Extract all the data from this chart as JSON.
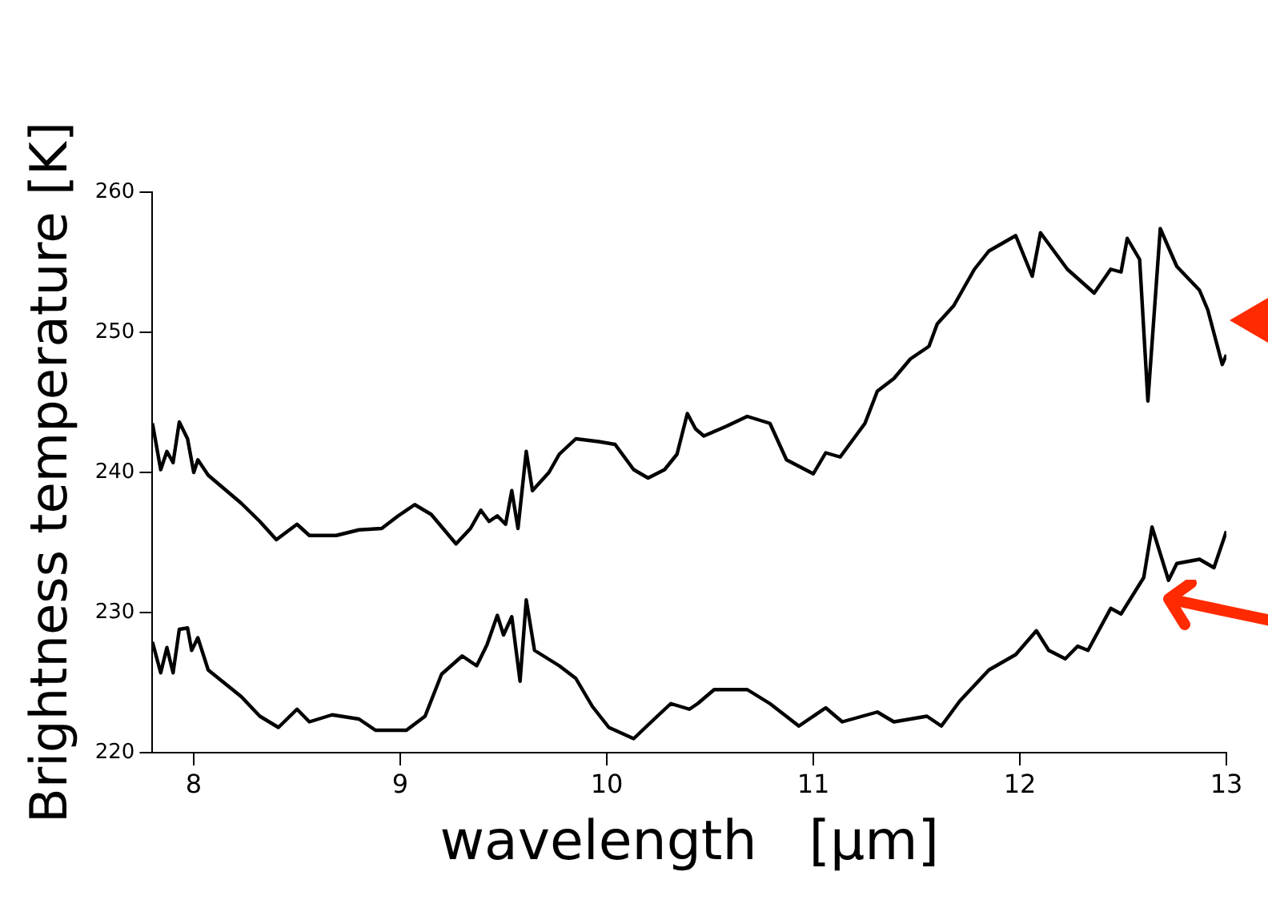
{
  "chart_data": {
    "type": "line",
    "xlabel": "wavelength   [μm]",
    "ylabel": "Brightness temperature [K]",
    "xlim": [
      7.8,
      13.0
    ],
    "xticks": [
      8,
      9,
      10,
      11,
      12,
      13
    ],
    "ylim": [
      220,
      260
    ],
    "yticks": [
      220,
      230,
      240,
      250,
      260
    ],
    "grid": false,
    "legend": false,
    "marker": "none",
    "line_style": "solid",
    "series": [
      {
        "color": "#000000",
        "x": [
          7.8,
          7.84,
          7.87,
          7.9,
          7.93,
          7.97,
          8.0,
          8.02,
          8.07,
          8.23,
          8.32,
          8.4,
          8.5,
          8.56,
          8.69,
          8.8,
          8.91,
          8.99,
          9.07,
          9.15,
          9.27,
          9.34,
          9.39,
          9.43,
          9.47,
          9.51,
          9.54,
          9.57,
          9.61,
          9.64,
          9.72,
          9.77,
          9.85,
          9.96,
          10.04,
          10.13,
          10.2,
          10.28,
          10.34,
          10.39,
          10.43,
          10.47,
          10.58,
          10.68,
          10.79,
          10.87,
          11.0,
          11.06,
          11.13,
          11.25,
          11.31,
          11.39,
          11.47,
          11.56,
          11.6,
          11.68,
          11.78,
          11.85,
          11.98,
          12.06,
          12.1,
          12.23,
          12.36,
          12.44,
          12.49,
          12.52,
          12.58,
          12.62,
          12.68,
          12.76,
          12.87,
          12.91,
          12.98,
          13.0
        ],
        "values": [
          243.5,
          240.2,
          241.5,
          240.7,
          243.6,
          242.4,
          240.0,
          240.9,
          239.8,
          237.8,
          236.5,
          235.2,
          236.3,
          235.5,
          235.5,
          235.9,
          236.0,
          236.9,
          237.7,
          237.0,
          234.9,
          236.0,
          237.3,
          236.5,
          236.9,
          236.3,
          238.7,
          236.0,
          241.5,
          238.7,
          240.0,
          241.3,
          242.4,
          242.2,
          242.0,
          240.2,
          239.6,
          240.2,
          241.3,
          244.2,
          243.1,
          242.6,
          243.3,
          244.0,
          243.5,
          240.9,
          239.9,
          241.4,
          241.1,
          243.5,
          245.8,
          246.7,
          248.1,
          249.0,
          250.6,
          251.9,
          254.5,
          255.8,
          256.9,
          254.0,
          257.1,
          254.5,
          252.8,
          254.5,
          254.3,
          256.7,
          255.2,
          245.1,
          257.4,
          254.7,
          253.0,
          251.6,
          247.7,
          248.4
        ]
      },
      {
        "color": "#000000",
        "x": [
          7.8,
          7.84,
          7.87,
          7.9,
          7.93,
          7.97,
          7.99,
          8.02,
          8.07,
          8.23,
          8.32,
          8.41,
          8.5,
          8.56,
          8.67,
          8.8,
          8.88,
          9.03,
          9.12,
          9.2,
          9.3,
          9.37,
          9.42,
          9.47,
          9.5,
          9.54,
          9.58,
          9.61,
          9.65,
          9.77,
          9.85,
          9.93,
          10.01,
          10.13,
          10.23,
          10.31,
          10.4,
          10.44,
          10.52,
          10.63,
          10.68,
          10.79,
          10.93,
          11.06,
          11.14,
          11.31,
          11.39,
          11.55,
          11.62,
          11.71,
          11.85,
          11.98,
          12.08,
          12.14,
          12.22,
          12.28,
          12.33,
          12.44,
          12.49,
          12.6,
          12.64,
          12.72,
          12.76,
          12.87,
          12.94,
          13.0
        ],
        "values": [
          227.9,
          225.7,
          227.5,
          225.7,
          228.8,
          228.9,
          227.3,
          228.2,
          225.9,
          224.0,
          222.6,
          221.8,
          223.1,
          222.2,
          222.7,
          222.4,
          221.6,
          221.6,
          222.6,
          225.6,
          226.9,
          226.2,
          227.7,
          229.8,
          228.4,
          229.7,
          225.1,
          230.9,
          227.3,
          226.2,
          225.3,
          223.3,
          221.8,
          221.0,
          222.4,
          223.5,
          223.1,
          223.5,
          224.5,
          224.5,
          224.5,
          223.5,
          221.9,
          223.2,
          222.2,
          222.9,
          222.2,
          222.6,
          221.9,
          223.7,
          225.9,
          227.0,
          228.7,
          227.3,
          226.7,
          227.6,
          227.3,
          230.3,
          229.9,
          232.5,
          236.1,
          232.3,
          233.5,
          233.8,
          233.2,
          235.8
        ]
      }
    ]
  }
}
